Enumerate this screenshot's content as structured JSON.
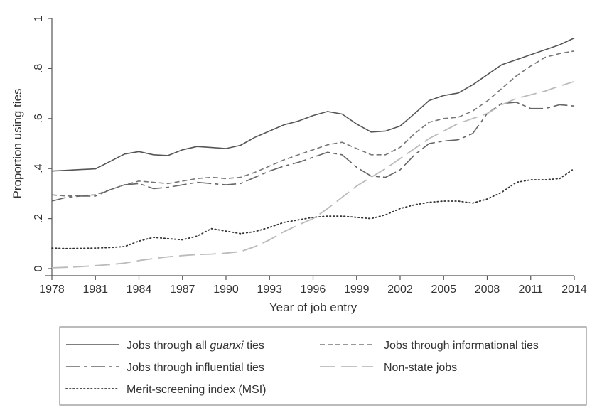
{
  "chart_data": {
    "type": "line",
    "xlabel": "Year of job entry",
    "ylabel": "Proportion using ties",
    "xlim": [
      1978,
      2014
    ],
    "ylim": [
      0,
      1
    ],
    "x_ticks": [
      "1978",
      "1981",
      "1984",
      "1987",
      "1990",
      "1993",
      "1996",
      "1999",
      "2002",
      "2005",
      "2008",
      "2011",
      "2014"
    ],
    "y_ticks": [
      {
        "value": 0,
        "label": "0"
      },
      {
        "value": 0.2,
        "label": ".2"
      },
      {
        "value": 0.4,
        "label": ".4"
      },
      {
        "value": 0.6,
        "label": ".6"
      },
      {
        "value": 0.8,
        "label": ".8"
      },
      {
        "value": 1,
        "label": "1"
      }
    ],
    "grid": false,
    "legend_position": "bottom",
    "x": [
      1978,
      1979,
      1980,
      1981,
      1982,
      1983,
      1984,
      1985,
      1986,
      1987,
      1988,
      1989,
      1990,
      1991,
      1992,
      1993,
      1994,
      1995,
      1996,
      1997,
      1998,
      1999,
      2000,
      2001,
      2002,
      2003,
      2004,
      2005,
      2006,
      2007,
      2008,
      2009,
      2010,
      2011,
      2012,
      2013,
      2014
    ],
    "series": [
      {
        "name_prefix": "Jobs through all ",
        "name_italic": "guanxi",
        "name_suffix": " ties",
        "style": "solid",
        "color": "#555555",
        "values": [
          0.39,
          0.393,
          0.396,
          0.399,
          0.428,
          0.458,
          0.468,
          0.455,
          0.452,
          0.475,
          0.488,
          0.484,
          0.48,
          0.493,
          0.525,
          0.55,
          0.575,
          0.59,
          0.612,
          0.628,
          0.618,
          0.578,
          0.546,
          0.55,
          0.57,
          0.62,
          0.672,
          0.692,
          0.702,
          0.735,
          0.775,
          0.815,
          0.835,
          0.855,
          0.875,
          0.895,
          0.922
        ]
      },
      {
        "name": "Jobs through informational ties",
        "style": "dashed",
        "color": "#777777",
        "values": [
          0.295,
          0.29,
          0.292,
          0.295,
          0.315,
          0.335,
          0.35,
          0.345,
          0.34,
          0.35,
          0.36,
          0.365,
          0.36,
          0.365,
          0.385,
          0.41,
          0.435,
          0.455,
          0.475,
          0.495,
          0.505,
          0.48,
          0.455,
          0.455,
          0.485,
          0.54,
          0.585,
          0.6,
          0.605,
          0.63,
          0.67,
          0.72,
          0.77,
          0.81,
          0.845,
          0.86,
          0.87
        ]
      },
      {
        "name": "Jobs through influential ties",
        "style": "longdash",
        "color": "#666666",
        "values": [
          0.27,
          0.285,
          0.29,
          0.29,
          0.315,
          0.335,
          0.34,
          0.32,
          0.325,
          0.335,
          0.345,
          0.34,
          0.335,
          0.34,
          0.365,
          0.39,
          0.41,
          0.425,
          0.445,
          0.465,
          0.455,
          0.405,
          0.37,
          0.365,
          0.395,
          0.455,
          0.5,
          0.51,
          0.515,
          0.54,
          0.62,
          0.66,
          0.665,
          0.64,
          0.64,
          0.655,
          0.65
        ]
      },
      {
        "name": "Non-state jobs",
        "style": "longdash-light",
        "color": "#bbbbbb",
        "values": [
          0.003,
          0.005,
          0.008,
          0.012,
          0.016,
          0.022,
          0.032,
          0.04,
          0.047,
          0.052,
          0.056,
          0.058,
          0.062,
          0.068,
          0.088,
          0.115,
          0.148,
          0.175,
          0.2,
          0.24,
          0.285,
          0.33,
          0.365,
          0.4,
          0.44,
          0.48,
          0.52,
          0.55,
          0.58,
          0.6,
          0.62,
          0.655,
          0.68,
          0.695,
          0.71,
          0.73,
          0.748
        ]
      },
      {
        "name": "Merit-screening index (MSI)",
        "style": "dotted",
        "color": "#333333",
        "values": [
          0.082,
          0.08,
          0.081,
          0.082,
          0.084,
          0.088,
          0.11,
          0.125,
          0.12,
          0.115,
          0.13,
          0.16,
          0.15,
          0.14,
          0.148,
          0.165,
          0.185,
          0.195,
          0.205,
          0.21,
          0.21,
          0.205,
          0.2,
          0.215,
          0.24,
          0.255,
          0.265,
          0.27,
          0.27,
          0.262,
          0.278,
          0.305,
          0.345,
          0.355,
          0.355,
          0.36,
          0.4
        ]
      }
    ]
  }
}
